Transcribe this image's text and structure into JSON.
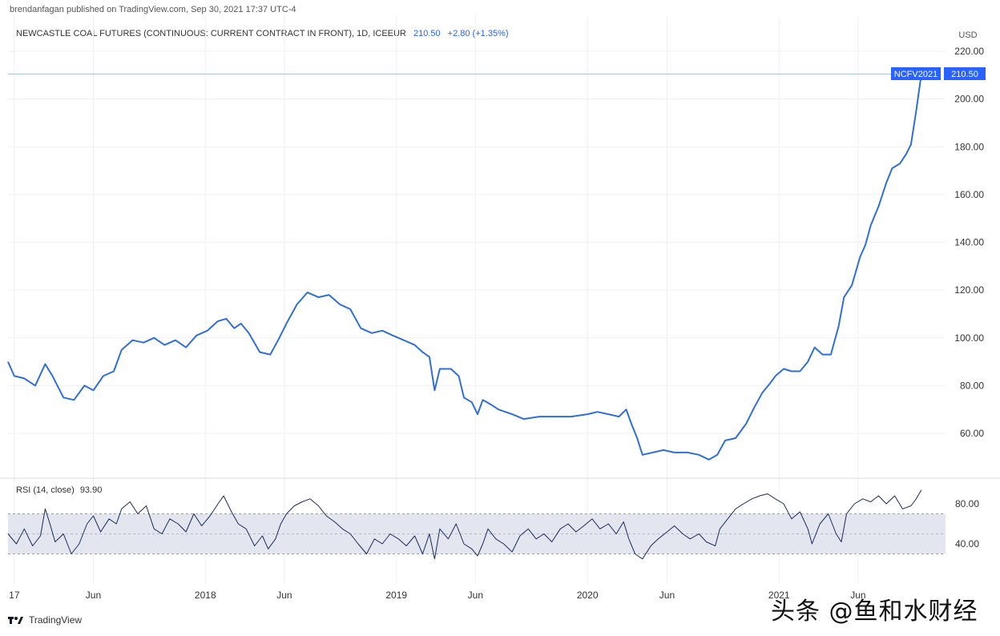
{
  "header": {
    "published": "brendanfagan published on TradingView.com, Sep 30, 2021 17:37 UTC-4",
    "symbol_title": "NEWCASTLE COAL FUTURES (CONTINUOUS: CURRENT CONTRACT IN FRONT), 1D, ICEEUR",
    "last_price": "210.50",
    "change": "+2.80 (+1.35%)"
  },
  "price_axis": {
    "currency": "USD"
  },
  "last_tags": {
    "symbol_tag": "NCFV2021",
    "price_tag": "210.50"
  },
  "rsi": {
    "label": "RSI (14, close)",
    "value": "93.90"
  },
  "footer": {
    "brand": "TradingView"
  },
  "watermark": "头条 @鱼和水财经",
  "colors": {
    "price_line": "#2f6fd6",
    "rsi_line": "#1c2a5c",
    "rsi_band": "#e4e6ef",
    "accent": "#2962ff"
  },
  "chart_data": [
    {
      "type": "line",
      "title": "NEWCASTLE COAL FUTURES (CONTINUOUS: CURRENT CONTRACT IN FRONT), 1D, ICEEUR",
      "ylabel": "USD",
      "xlabel": "",
      "ylim": [
        46,
        224
      ],
      "y_ticks": [
        220,
        200,
        180,
        160,
        140,
        120,
        100,
        80,
        60
      ],
      "y_tick_labels": [
        "220.00",
        "200.00",
        "180.00",
        "160.00",
        "140.00",
        "120.00",
        "100.00",
        "80.00",
        "60.00"
      ],
      "x_ticks": [
        "2017-01-01",
        "2017-06-01",
        "2018-01-01",
        "2018-06-01",
        "2019-01-01",
        "2019-06-01",
        "2020-01-01",
        "2020-06-01",
        "2021-01-01",
        "2021-06-01"
      ],
      "x_tick_labels": [
        "17",
        "Jun",
        "2018",
        "Jun",
        "2019",
        "Jun",
        "2020",
        "Jun",
        "2021",
        "Jun"
      ],
      "xlim": [
        "2016-12-20",
        "2021-11-15"
      ],
      "grid": true,
      "series": [
        {
          "values": [
            [
              "2016-12-20",
              90
            ],
            [
              "2017-01-01",
              84
            ],
            [
              "2017-01-20",
              83
            ],
            [
              "2017-02-10",
              80
            ],
            [
              "2017-03-01",
              89
            ],
            [
              "2017-03-15",
              84
            ],
            [
              "2017-04-05",
              75
            ],
            [
              "2017-04-25",
              74
            ],
            [
              "2017-05-15",
              80
            ],
            [
              "2017-06-01",
              78
            ],
            [
              "2017-06-20",
              84
            ],
            [
              "2017-07-10",
              86
            ],
            [
              "2017-07-25",
              95
            ],
            [
              "2017-08-15",
              99
            ],
            [
              "2017-09-05",
              98
            ],
            [
              "2017-09-25",
              100
            ],
            [
              "2017-10-15",
              97
            ],
            [
              "2017-11-05",
              99
            ],
            [
              "2017-11-25",
              96
            ],
            [
              "2017-12-15",
              101
            ],
            [
              "2018-01-05",
              103
            ],
            [
              "2018-01-25",
              107
            ],
            [
              "2018-02-10",
              108
            ],
            [
              "2018-02-25",
              104
            ],
            [
              "2018-03-10",
              106
            ],
            [
              "2018-03-25",
              102
            ],
            [
              "2018-04-15",
              94
            ],
            [
              "2018-05-05",
              93
            ],
            [
              "2018-05-20",
              99
            ],
            [
              "2018-06-05",
              106
            ],
            [
              "2018-06-25",
              114
            ],
            [
              "2018-07-15",
              119
            ],
            [
              "2018-08-05",
              117
            ],
            [
              "2018-08-25",
              118
            ],
            [
              "2018-09-15",
              114
            ],
            [
              "2018-10-05",
              112
            ],
            [
              "2018-10-25",
              104
            ],
            [
              "2018-11-15",
              102
            ],
            [
              "2018-12-05",
              103
            ],
            [
              "2018-12-25",
              101
            ],
            [
              "2019-01-15",
              99
            ],
            [
              "2019-02-05",
              97
            ],
            [
              "2019-02-20",
              94
            ],
            [
              "2019-03-05",
              92
            ],
            [
              "2019-03-15",
              78
            ],
            [
              "2019-03-25",
              87
            ],
            [
              "2019-04-15",
              87
            ],
            [
              "2019-04-30",
              84
            ],
            [
              "2019-05-10",
              75
            ],
            [
              "2019-05-25",
              73
            ],
            [
              "2019-06-05",
              68
            ],
            [
              "2019-06-15",
              74
            ],
            [
              "2019-07-01",
              72
            ],
            [
              "2019-07-15",
              70
            ],
            [
              "2019-08-10",
              68
            ],
            [
              "2019-09-01",
              66
            ],
            [
              "2019-10-01",
              67
            ],
            [
              "2019-11-01",
              67
            ],
            [
              "2019-12-01",
              67
            ],
            [
              "2020-01-01",
              68
            ],
            [
              "2020-01-20",
              69
            ],
            [
              "2020-02-10",
              68
            ],
            [
              "2020-03-01",
              67
            ],
            [
              "2020-03-15",
              70
            ],
            [
              "2020-03-25",
              64
            ],
            [
              "2020-04-05",
              58
            ],
            [
              "2020-04-15",
              51
            ],
            [
              "2020-05-05",
              52
            ],
            [
              "2020-05-25",
              53
            ],
            [
              "2020-06-15",
              52
            ],
            [
              "2020-07-10",
              52
            ],
            [
              "2020-08-01",
              51
            ],
            [
              "2020-08-20",
              49
            ],
            [
              "2020-09-05",
              51
            ],
            [
              "2020-09-20",
              57
            ],
            [
              "2020-10-10",
              58
            ],
            [
              "2020-10-30",
              64
            ],
            [
              "2020-11-15",
              71
            ],
            [
              "2020-11-30",
              77
            ],
            [
              "2020-12-15",
              81
            ],
            [
              "2020-12-25",
              84
            ],
            [
              "2021-01-10",
              87
            ],
            [
              "2021-01-25",
              86
            ],
            [
              "2021-02-10",
              86
            ],
            [
              "2021-02-25",
              90
            ],
            [
              "2021-03-10",
              96
            ],
            [
              "2021-03-25",
              93
            ],
            [
              "2021-04-10",
              93
            ],
            [
              "2021-04-25",
              105
            ],
            [
              "2021-05-05",
              117
            ],
            [
              "2021-05-20",
              122
            ],
            [
              "2021-06-05",
              134
            ],
            [
              "2021-06-15",
              139
            ],
            [
              "2021-06-25",
              147
            ],
            [
              "2021-07-10",
              155
            ],
            [
              "2021-07-25",
              165
            ],
            [
              "2021-08-05",
              171
            ],
            [
              "2021-08-20",
              173
            ],
            [
              "2021-09-01",
              177
            ],
            [
              "2021-09-10",
              181
            ],
            [
              "2021-09-20",
              195
            ],
            [
              "2021-09-30",
              210.5
            ]
          ]
        }
      ]
    },
    {
      "type": "line",
      "title": "RSI (14, close)",
      "ylim": [
        18,
        97
      ],
      "y_ticks": [
        80,
        40
      ],
      "y_tick_labels": [
        "80.00",
        "40.00"
      ],
      "band": [
        30,
        70
      ],
      "midline": 50,
      "xlim": [
        "2016-12-20",
        "2021-11-15"
      ],
      "series": [
        {
          "values": [
            [
              "2016-12-20",
              50
            ],
            [
              "2017-01-05",
              40
            ],
            [
              "2017-01-20",
              55
            ],
            [
              "2017-02-05",
              38
            ],
            [
              "2017-02-20",
              48
            ],
            [
              "2017-03-01",
              75
            ],
            [
              "2017-03-10",
              60
            ],
            [
              "2017-03-20",
              42
            ],
            [
              "2017-04-05",
              50
            ],
            [
              "2017-04-20",
              30
            ],
            [
              "2017-05-05",
              40
            ],
            [
              "2017-05-20",
              60
            ],
            [
              "2017-06-01",
              68
            ],
            [
              "2017-06-15",
              52
            ],
            [
              "2017-07-01",
              65
            ],
            [
              "2017-07-15",
              60
            ],
            [
              "2017-07-25",
              75
            ],
            [
              "2017-08-10",
              82
            ],
            [
              "2017-08-25",
              70
            ],
            [
              "2017-09-10",
              78
            ],
            [
              "2017-09-25",
              55
            ],
            [
              "2017-10-10",
              50
            ],
            [
              "2017-10-25",
              65
            ],
            [
              "2017-11-10",
              60
            ],
            [
              "2017-11-25",
              52
            ],
            [
              "2017-12-10",
              70
            ],
            [
              "2017-12-25",
              58
            ],
            [
              "2018-01-10",
              68
            ],
            [
              "2018-01-25",
              80
            ],
            [
              "2018-02-05",
              88
            ],
            [
              "2018-02-20",
              72
            ],
            [
              "2018-03-05",
              60
            ],
            [
              "2018-03-20",
              55
            ],
            [
              "2018-04-05",
              38
            ],
            [
              "2018-04-20",
              48
            ],
            [
              "2018-05-01",
              35
            ],
            [
              "2018-05-15",
              45
            ],
            [
              "2018-05-25",
              60
            ],
            [
              "2018-06-05",
              70
            ],
            [
              "2018-06-20",
              78
            ],
            [
              "2018-07-05",
              82
            ],
            [
              "2018-07-20",
              85
            ],
            [
              "2018-08-05",
              78
            ],
            [
              "2018-08-20",
              68
            ],
            [
              "2018-09-05",
              62
            ],
            [
              "2018-09-20",
              55
            ],
            [
              "2018-10-05",
              50
            ],
            [
              "2018-10-20",
              40
            ],
            [
              "2018-11-05",
              30
            ],
            [
              "2018-11-20",
              45
            ],
            [
              "2018-12-05",
              40
            ],
            [
              "2018-12-20",
              50
            ],
            [
              "2019-01-05",
              45
            ],
            [
              "2019-01-20",
              38
            ],
            [
              "2019-02-05",
              48
            ],
            [
              "2019-02-20",
              30
            ],
            [
              "2019-03-05",
              50
            ],
            [
              "2019-03-15",
              25
            ],
            [
              "2019-03-25",
              55
            ],
            [
              "2019-04-10",
              45
            ],
            [
              "2019-04-25",
              60
            ],
            [
              "2019-05-10",
              40
            ],
            [
              "2019-05-25",
              35
            ],
            [
              "2019-06-05",
              28
            ],
            [
              "2019-06-15",
              40
            ],
            [
              "2019-06-25",
              55
            ],
            [
              "2019-07-10",
              45
            ],
            [
              "2019-07-25",
              40
            ],
            [
              "2019-08-10",
              32
            ],
            [
              "2019-08-25",
              48
            ],
            [
              "2019-09-10",
              55
            ],
            [
              "2019-09-25",
              45
            ],
            [
              "2019-10-10",
              50
            ],
            [
              "2019-10-25",
              42
            ],
            [
              "2019-11-10",
              55
            ],
            [
              "2019-11-25",
              60
            ],
            [
              "2019-12-10",
              52
            ],
            [
              "2019-12-25",
              58
            ],
            [
              "2020-01-10",
              65
            ],
            [
              "2020-01-25",
              55
            ],
            [
              "2020-02-10",
              60
            ],
            [
              "2020-02-25",
              50
            ],
            [
              "2020-03-10",
              62
            ],
            [
              "2020-03-20",
              45
            ],
            [
              "2020-04-01",
              30
            ],
            [
              "2020-04-15",
              25
            ],
            [
              "2020-05-01",
              38
            ],
            [
              "2020-05-15",
              45
            ],
            [
              "2020-06-01",
              52
            ],
            [
              "2020-06-15",
              58
            ],
            [
              "2020-07-01",
              50
            ],
            [
              "2020-07-15",
              45
            ],
            [
              "2020-08-01",
              50
            ],
            [
              "2020-08-15",
              42
            ],
            [
              "2020-09-01",
              38
            ],
            [
              "2020-09-10",
              55
            ],
            [
              "2020-09-25",
              65
            ],
            [
              "2020-10-10",
              75
            ],
            [
              "2020-10-25",
              80
            ],
            [
              "2020-11-10",
              85
            ],
            [
              "2020-11-25",
              88
            ],
            [
              "2020-12-10",
              90
            ],
            [
              "2020-12-25",
              85
            ],
            [
              "2021-01-10",
              80
            ],
            [
              "2021-01-25",
              65
            ],
            [
              "2021-02-10",
              72
            ],
            [
              "2021-02-25",
              55
            ],
            [
              "2021-03-05",
              40
            ],
            [
              "2021-03-20",
              60
            ],
            [
              "2021-04-05",
              70
            ],
            [
              "2021-04-20",
              50
            ],
            [
              "2021-04-30",
              42
            ],
            [
              "2021-05-10",
              70
            ],
            [
              "2021-05-25",
              80
            ],
            [
              "2021-06-10",
              85
            ],
            [
              "2021-06-25",
              82
            ],
            [
              "2021-07-10",
              88
            ],
            [
              "2021-07-25",
              80
            ],
            [
              "2021-08-10",
              88
            ],
            [
              "2021-08-25",
              75
            ],
            [
              "2021-09-10",
              78
            ],
            [
              "2021-09-20",
              85
            ],
            [
              "2021-09-30",
              93.9
            ]
          ]
        }
      ]
    }
  ]
}
